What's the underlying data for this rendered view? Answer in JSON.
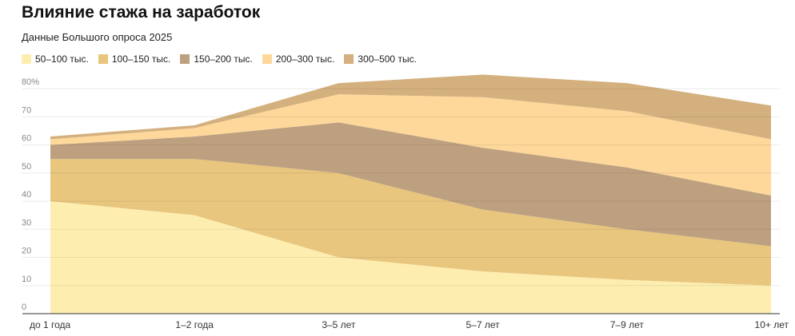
{
  "chart_data": {
    "type": "stacked-area",
    "title": "Влияние стажа на заработок",
    "subtitle": "Данные Большого опроса 2025",
    "categories": [
      "до 1 года",
      "1–2 года",
      "3–5 лет",
      "5–7 лет",
      "7–9 лет",
      "10+ лет"
    ],
    "series": [
      {
        "name": "50–100 тыс.",
        "color": "#fdeeb0",
        "values": [
          40,
          35,
          20,
          15,
          12,
          10
        ]
      },
      {
        "name": "100–150 тыс.",
        "color": "#e8c67e",
        "values": [
          15,
          20,
          30,
          22,
          18,
          14
        ]
      },
      {
        "name": "150–200 тыс.",
        "color": "#bda07f",
        "values": [
          5,
          8,
          18,
          22,
          22,
          18
        ]
      },
      {
        "name": "200–300 тыс.",
        "color": "#fdd89a",
        "values": [
          2,
          3,
          10,
          18,
          20,
          20
        ]
      },
      {
        "name": "300–500 тыс.",
        "color": "#d4b07e",
        "values": [
          1,
          1,
          4,
          8,
          10,
          12
        ]
      }
    ],
    "ylim": [
      0,
      86
    ],
    "yticks": [
      0,
      10,
      20,
      30,
      40,
      50,
      60,
      70,
      {
        "value": 80,
        "label": "80%"
      }
    ],
    "grid": true
  }
}
